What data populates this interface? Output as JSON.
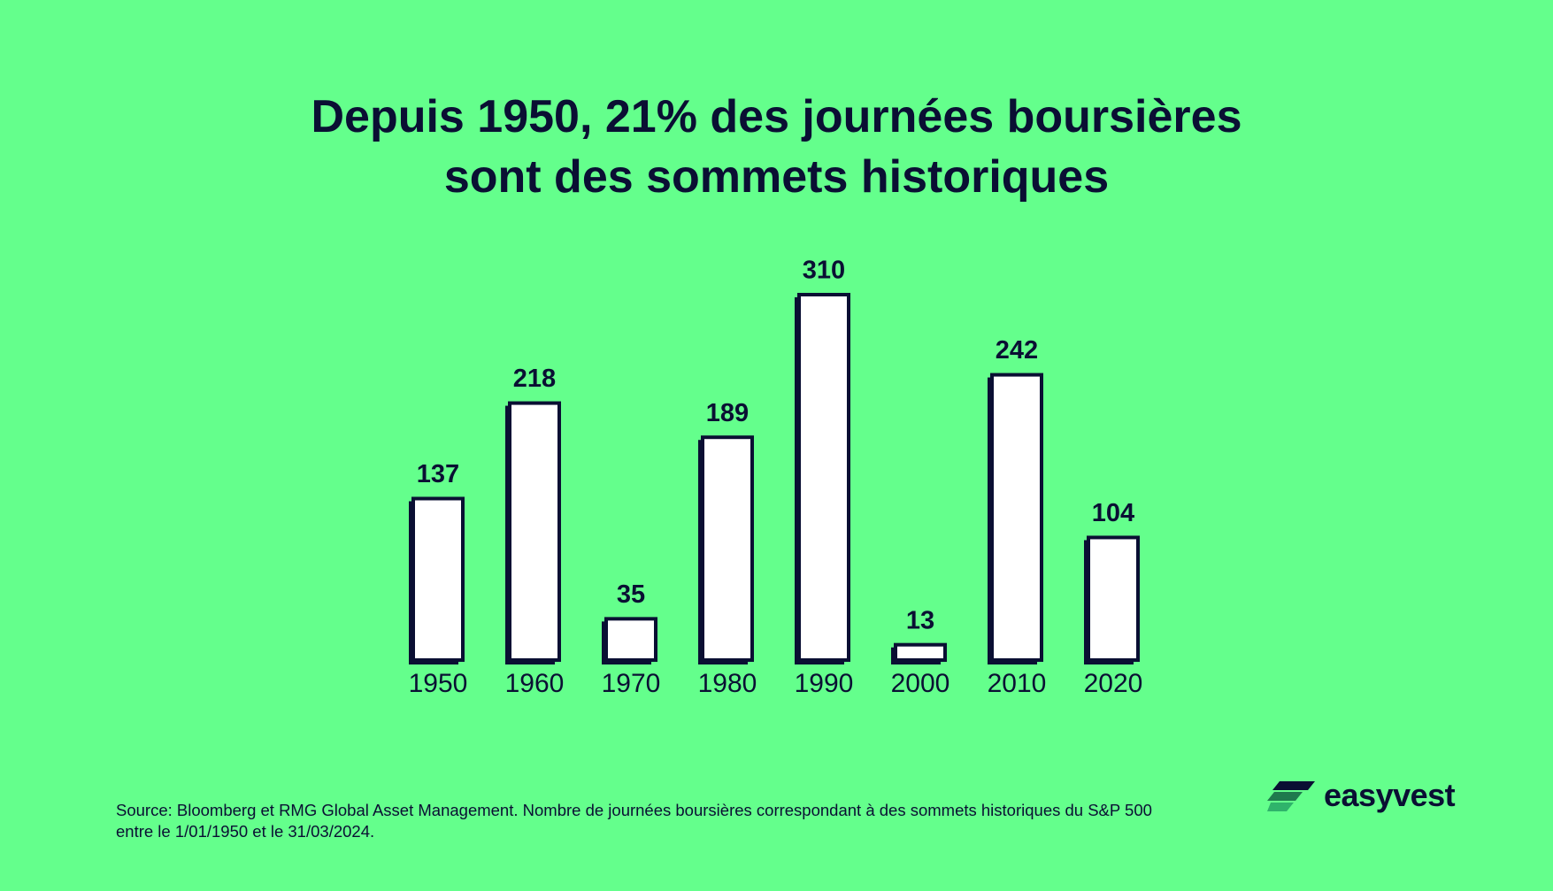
{
  "chart_data": {
    "type": "bar",
    "title": [
      "Depuis 1950, 21% des journées boursières",
      "sont des sommets historiques"
    ],
    "categories": [
      "1950",
      "1960",
      "1970",
      "1980",
      "1990",
      "2000",
      "2010",
      "2020"
    ],
    "values": [
      137,
      218,
      35,
      189,
      310,
      13,
      242,
      104
    ],
    "color": "#ffffff"
  },
  "source": "Source: Bloomberg et RMG Global Asset Management. Nombre de journées boursières correspondant à des sommets historiques du S&P 500 entre le 1/01/1950 et le 31/03/2024.",
  "logo": "easyvest"
}
